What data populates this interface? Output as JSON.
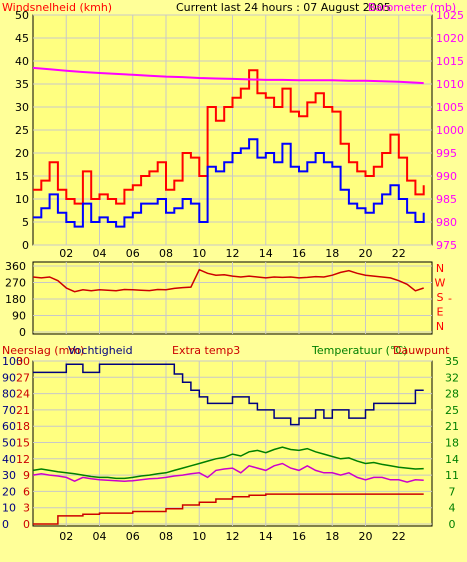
{
  "colors": {
    "background": "#FFFF98",
    "plot_background": "#FFFF80",
    "grid": "#C8C8C8",
    "axis": "#000000",
    "wind_gust": "#FF0000",
    "wind_avg": "#0000FF",
    "barometer": "#FF00FF",
    "winddir": "#CC0000",
    "humidity": "#000080",
    "rain": "#CC0000",
    "temperature": "#007F00",
    "dewpoint": "#CC00CC",
    "label_red": "#FF0000",
    "label_magenta": "#CC00CC",
    "label_green": "#007F00",
    "label_darkred": "#CC0000",
    "label_navy": "#000080"
  },
  "header": {
    "wind_label": "Windsnelheid (kmh)",
    "title": "Current last 24 hours : 07 August 2005",
    "baro_label": "Barometer (mb)"
  },
  "hours": [
    "02",
    "04",
    "06",
    "08",
    "10",
    "12",
    "14",
    "16",
    "18",
    "20",
    "22"
  ],
  "chart_data": [
    {
      "type": "line",
      "name": "wind",
      "ylabel": "Windsnelheid (kmh)",
      "y2label": "Barometer (mb)",
      "ylim": [
        0,
        50
      ],
      "y_ticks": [
        "0",
        "5",
        "10",
        "15",
        "20",
        "25",
        "30",
        "35",
        "40",
        "45",
        "50"
      ],
      "y2lim": [
        975,
        1025
      ],
      "y2_ticks": [
        "975",
        "980",
        "985",
        "990",
        "995",
        "1000",
        "1005",
        "1010",
        "1015",
        "1020",
        "1025"
      ],
      "x_range_hours": [
        0,
        24
      ],
      "series": [
        {
          "key": "gust",
          "color": "#FF0000",
          "x": [
            0,
            0.5,
            1,
            1.5,
            2,
            2.5,
            3,
            3.5,
            4,
            4.5,
            5,
            5.5,
            6,
            6.5,
            7,
            7.5,
            8,
            8.5,
            9,
            9.5,
            10,
            10.5,
            11,
            11.5,
            12,
            12.5,
            13,
            13.5,
            14,
            14.5,
            15,
            15.5,
            16,
            16.5,
            17,
            17.5,
            18,
            18.5,
            19,
            19.5,
            20,
            20.5,
            21,
            21.5,
            22,
            22.5,
            23,
            23.5
          ],
          "values": [
            12,
            14,
            18,
            12,
            10,
            9,
            16,
            10,
            11,
            10,
            9,
            12,
            13,
            15,
            16,
            18,
            12,
            14,
            20,
            19,
            15,
            30,
            27,
            30,
            32,
            34,
            38,
            33,
            32,
            30,
            34,
            29,
            28,
            31,
            33,
            30,
            29,
            22,
            18,
            16,
            15,
            17,
            20,
            24,
            19,
            14,
            11,
            13
          ]
        },
        {
          "key": "average",
          "color": "#0000FF",
          "x": [
            0,
            0.5,
            1,
            1.5,
            2,
            2.5,
            3,
            3.5,
            4,
            4.5,
            5,
            5.5,
            6,
            6.5,
            7,
            7.5,
            8,
            8.5,
            9,
            9.5,
            10,
            10.5,
            11,
            11.5,
            12,
            12.5,
            13,
            13.5,
            14,
            14.5,
            15,
            15.5,
            16,
            16.5,
            17,
            17.5,
            18,
            18.5,
            19,
            19.5,
            20,
            20.5,
            21,
            21.5,
            22,
            22.5,
            23,
            23.5
          ],
          "values": [
            6,
            8,
            11,
            7,
            5,
            4,
            9,
            5,
            6,
            5,
            4,
            6,
            7,
            9,
            9,
            10,
            7,
            8,
            10,
            9,
            5,
            17,
            16,
            18,
            20,
            21,
            23,
            19,
            20,
            18,
            22,
            17,
            16,
            18,
            20,
            18,
            17,
            12,
            9,
            8,
            7,
            9,
            11,
            13,
            10,
            7,
            5,
            7
          ]
        },
        {
          "key": "barometer",
          "axis": "right",
          "color": "#FF00FF",
          "x": [
            0,
            1,
            2,
            3,
            4,
            5,
            6,
            7,
            8,
            9,
            10,
            11,
            12,
            13,
            14,
            15,
            16,
            17,
            18,
            19,
            20,
            21,
            22,
            23,
            23.5
          ],
          "values": [
            1013.5,
            1013.2,
            1012.9,
            1012.6,
            1012.4,
            1012.2,
            1012.0,
            1011.8,
            1011.6,
            1011.5,
            1011.3,
            1011.2,
            1011.1,
            1011.0,
            1010.9,
            1010.9,
            1010.8,
            1010.8,
            1010.8,
            1010.7,
            1010.7,
            1010.6,
            1010.5,
            1010.3,
            1010.2
          ]
        }
      ]
    },
    {
      "type": "line",
      "name": "wind-direction",
      "ylim": [
        0,
        360
      ],
      "y_ticks": [
        "0",
        "90",
        "180",
        "270",
        "360"
      ],
      "y2_ticks": [
        "N",
        "W",
        "S",
        "E",
        "N"
      ],
      "series": [
        {
          "key": "direction",
          "color": "#CC0000",
          "x": [
            0,
            0.5,
            1,
            1.5,
            2,
            2.5,
            3,
            3.5,
            4,
            4.5,
            5,
            5.5,
            6,
            6.5,
            7,
            7.5,
            8,
            8.5,
            9,
            9.5,
            10,
            10.5,
            11,
            11.5,
            12,
            12.5,
            13,
            13.5,
            14,
            14.5,
            15,
            15.5,
            16,
            16.5,
            17,
            17.5,
            18,
            18.5,
            19,
            19.5,
            20,
            20.5,
            21,
            21.5,
            22,
            22.5,
            23,
            23.5
          ],
          "values": [
            300,
            295,
            300,
            280,
            240,
            220,
            230,
            225,
            230,
            228,
            225,
            232,
            230,
            228,
            226,
            232,
            230,
            238,
            242,
            245,
            340,
            320,
            310,
            312,
            305,
            300,
            305,
            300,
            295,
            300,
            298,
            300,
            295,
            298,
            302,
            300,
            310,
            325,
            335,
            320,
            310,
            305,
            300,
            295,
            280,
            260,
            225,
            240
          ]
        }
      ]
    },
    {
      "type": "line",
      "name": "climate",
      "labels": [
        "Neerslag (mm)",
        "Vochtigheid",
        "Extra temp3",
        "Temperatuur (°C)",
        "Dauwpunt"
      ],
      "humidity_ticks": [
        "0",
        "10",
        "20",
        "30",
        "40",
        "50",
        "60",
        "70",
        "80",
        "90",
        "100"
      ],
      "rain_ticks": [
        "0",
        "3",
        "6",
        "9",
        "12",
        "15",
        "18",
        "21",
        "24",
        "27",
        "30"
      ],
      "temp_ticks": [
        "0",
        "4",
        "7",
        "11",
        "14",
        "18",
        "21",
        "25",
        "28",
        "32",
        "35"
      ],
      "series": [
        {
          "key": "humidity",
          "color": "#000080",
          "scale": [
            0,
            100
          ],
          "x": [
            0,
            1,
            2,
            3,
            4,
            5,
            6,
            7,
            8,
            8.5,
            9,
            9.5,
            10,
            10.5,
            11,
            11.5,
            12,
            12.5,
            13,
            13.5,
            14,
            14.5,
            15,
            15.5,
            16,
            16.5,
            17,
            17.5,
            18,
            18.5,
            19,
            19.5,
            20,
            20.5,
            21,
            21.5,
            22,
            22.5,
            23,
            23.5
          ],
          "values": [
            93,
            93,
            98,
            93,
            98,
            98,
            98,
            98,
            98,
            92,
            87,
            82,
            78,
            74,
            74,
            74,
            78,
            78,
            74,
            70,
            70,
            65,
            65,
            61,
            65,
            65,
            70,
            65,
            70,
            70,
            65,
            65,
            70,
            74,
            74,
            74,
            74,
            74,
            82,
            82
          ]
        },
        {
          "key": "rain",
          "color": "#CC0000",
          "scale": [
            0,
            30
          ],
          "x": [
            0,
            1,
            1.5,
            3,
            4,
            6,
            8,
            9,
            10,
            11,
            12,
            13,
            14,
            15,
            16,
            17,
            18,
            19,
            20,
            21,
            22,
            23,
            23.5
          ],
          "values": [
            0,
            0,
            1.5,
            1.8,
            2.0,
            2.3,
            2.8,
            3.5,
            4.0,
            4.6,
            5.0,
            5.3,
            5.5,
            5.5,
            5.5,
            5.5,
            5.5,
            5.5,
            5.5,
            5.5,
            5.5,
            5.5,
            5.5
          ]
        },
        {
          "key": "temperature",
          "color": "#007F00",
          "scale": [
            0,
            35
          ],
          "x": [
            0,
            0.5,
            1,
            1.5,
            2,
            2.5,
            3,
            3.5,
            4,
            4.5,
            5,
            5.5,
            6,
            6.5,
            7,
            7.5,
            8,
            8.5,
            9,
            9.5,
            10,
            10.5,
            11,
            11.5,
            12,
            12.5,
            13,
            13.5,
            14,
            14.5,
            15,
            15.5,
            16,
            16.5,
            17,
            17.5,
            18,
            18.5,
            19,
            19.5,
            20,
            20.5,
            21,
            21.5,
            22,
            22.5,
            23,
            23.5
          ],
          "values": [
            11.5,
            11.8,
            11.5,
            11.2,
            11.0,
            10.8,
            10.5,
            10.2,
            10.0,
            10.0,
            9.8,
            9.8,
            10.0,
            10.3,
            10.5,
            10.8,
            11.0,
            11.5,
            12.0,
            12.5,
            13.0,
            13.5,
            14.0,
            14.3,
            15.0,
            14.6,
            15.5,
            15.8,
            15.3,
            16.0,
            16.5,
            16.0,
            15.8,
            16.2,
            15.5,
            15.0,
            14.5,
            14.0,
            14.2,
            13.5,
            13.0,
            13.2,
            12.8,
            12.5,
            12.2,
            12.0,
            11.8,
            11.9
          ]
        },
        {
          "key": "dewpoint",
          "color": "#CC00CC",
          "scale": [
            0,
            35
          ],
          "x": [
            0,
            0.5,
            1,
            1.5,
            2,
            2.5,
            3,
            3.5,
            4,
            4.5,
            5,
            5.5,
            6,
            6.5,
            7,
            7.5,
            8,
            8.5,
            9,
            9.5,
            10,
            10.5,
            11,
            11.5,
            12,
            12.5,
            13,
            13.5,
            14,
            14.5,
            15,
            15.5,
            16,
            16.5,
            17,
            17.5,
            18,
            18.5,
            19,
            19.5,
            20,
            20.5,
            21,
            21.5,
            22,
            22.5,
            23,
            23.5
          ],
          "values": [
            10.5,
            10.8,
            10.5,
            10.3,
            10.0,
            9.2,
            10.0,
            9.7,
            9.5,
            9.4,
            9.3,
            9.2,
            9.3,
            9.5,
            9.7,
            9.8,
            10.0,
            10.3,
            10.5,
            10.8,
            11.0,
            10.0,
            11.5,
            11.8,
            12.0,
            11.0,
            12.5,
            12.0,
            11.5,
            12.5,
            13.0,
            12.0,
            11.5,
            12.5,
            11.5,
            11.0,
            11.0,
            10.5,
            11.0,
            10.0,
            9.5,
            10.0,
            10.0,
            9.5,
            9.5,
            9.0,
            9.5,
            9.4
          ]
        }
      ]
    }
  ]
}
